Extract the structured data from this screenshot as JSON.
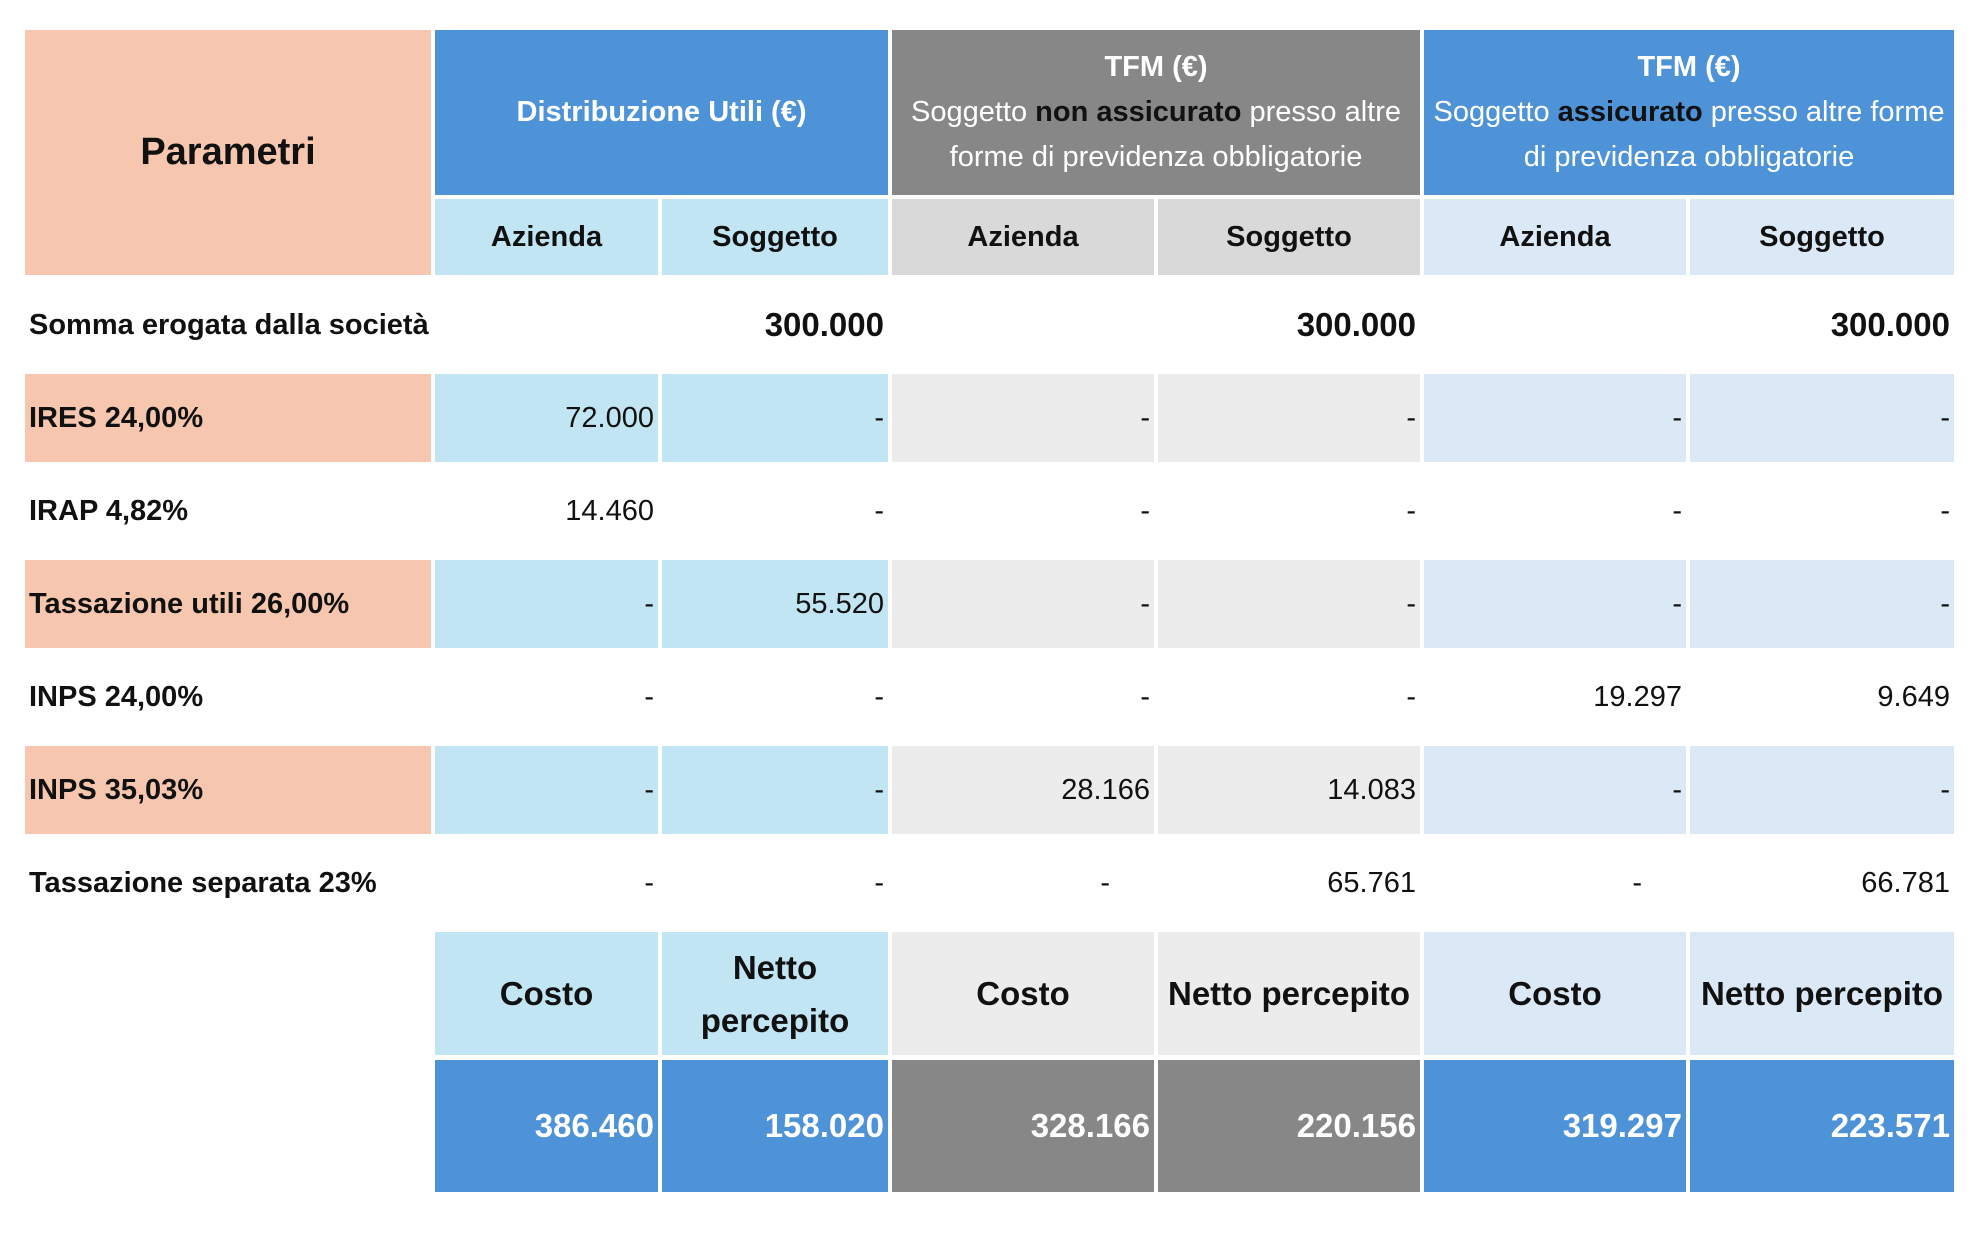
{
  "header": {
    "parametri": "Parametri",
    "groups": [
      {
        "title": "Distribuzione Utili (€)",
        "subtitle_pre": "",
        "subtitle_bold": "",
        "subtitle_post": ""
      },
      {
        "title": "TFM (€)",
        "subtitle_pre": "Soggetto ",
        "subtitle_bold": "non assicurato",
        "subtitle_post": " presso altre forme di previdenza obbligatorie"
      },
      {
        "title": "TFM (€)",
        "subtitle_pre": "Soggetto ",
        "subtitle_bold": "assicurato",
        "subtitle_post": " presso altre forme di previdenza obbligatorie"
      }
    ],
    "sub": [
      "Azienda",
      "Soggetto",
      "Azienda",
      "Soggetto",
      "Azienda",
      "Soggetto"
    ]
  },
  "rows": [
    {
      "label": "Somma erogata dalla società",
      "values": [
        "",
        "300.000",
        "",
        "300.000",
        "",
        "300.000"
      ]
    },
    {
      "label": "IRES 24,00%",
      "values": [
        "72.000",
        "-",
        "-",
        "-",
        "-",
        "-"
      ]
    },
    {
      "label": "IRAP 4,82%",
      "values": [
        "14.460",
        "-",
        "-",
        "-",
        "-",
        "-"
      ]
    },
    {
      "label": "Tassazione utili 26,00%",
      "values": [
        "-",
        "55.520",
        "-",
        "-",
        "-",
        "-"
      ]
    },
    {
      "label": "INPS 24,00%",
      "values": [
        "-",
        "-",
        "-",
        "-",
        "19.297",
        "9.649"
      ]
    },
    {
      "label": "INPS 35,03%",
      "values": [
        "-",
        "-",
        "28.166",
        "14.083",
        "-",
        "-"
      ]
    },
    {
      "label": "Tassazione separata 23%",
      "values": [
        "-",
        "-",
        "-",
        "65.761",
        "-",
        "66.781"
      ]
    }
  ],
  "footer": {
    "labels": [
      "Costo",
      "Netto percepito",
      "Costo",
      "Netto percepito",
      "Costo",
      "Netto percepito"
    ],
    "totals": [
      "386.460",
      "158.020",
      "328.166",
      "220.156",
      "319.297",
      "223.571"
    ]
  },
  "colors": {
    "salmon": "#f6c7ae",
    "blue": "#4e93d8",
    "grey": "#878787",
    "light_blue": "#c2e5f3",
    "light_grey": "#d9d9d9",
    "pale_blue": "#dbe9f7"
  }
}
